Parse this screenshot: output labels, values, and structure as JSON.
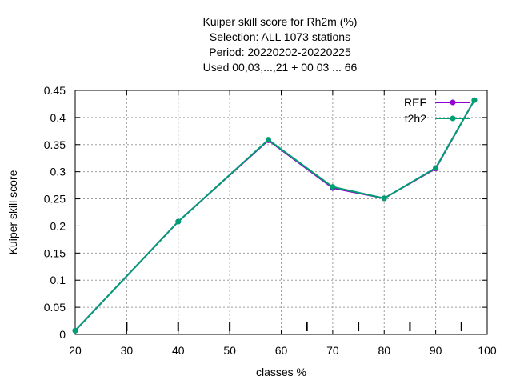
{
  "chart_data": {
    "type": "line",
    "title_lines": [
      "Kuiper skill score  for Rh2m (%)",
      "Selection: ALL   1073 stations",
      "Period: 20220202-20220225",
      "Used  00,03,...,21  + 00 03 ... 66"
    ],
    "xlabel": "classes %",
    "ylabel": "Kuiper skill score",
    "xlim": [
      20,
      100
    ],
    "ylim": [
      0,
      0.45
    ],
    "xticks": [
      20,
      30,
      40,
      50,
      60,
      70,
      80,
      90,
      100
    ],
    "yticks": [
      0,
      0.05,
      0.1,
      0.15,
      0.2,
      0.25,
      0.3,
      0.35,
      0.4,
      0.45
    ],
    "xtick_labels": [
      "20",
      "30",
      "40",
      "50",
      "60",
      "70",
      "80",
      "90",
      "100"
    ],
    "ytick_labels": [
      "0",
      "0.05",
      "0.1",
      "0.15",
      "0.2",
      "0.25",
      "0.3",
      "0.35",
      "0.4",
      "0.45"
    ],
    "class_marks": [
      30,
      40,
      50,
      65,
      75,
      85,
      95
    ],
    "grid": true,
    "legend_position": "top-right",
    "series": [
      {
        "name": "REF",
        "color": "#9400d3",
        "x": [
          20,
          40,
          57.5,
          70,
          80,
          90,
          97.5
        ],
        "y": [
          0.007,
          0.208,
          0.358,
          0.27,
          0.251,
          0.306,
          0.432
        ]
      },
      {
        "name": "t2h2",
        "color": "#009e73",
        "x": [
          20,
          40,
          57.5,
          70,
          80,
          90,
          97.5
        ],
        "y": [
          0.007,
          0.208,
          0.359,
          0.272,
          0.251,
          0.307,
          0.432
        ]
      }
    ]
  }
}
